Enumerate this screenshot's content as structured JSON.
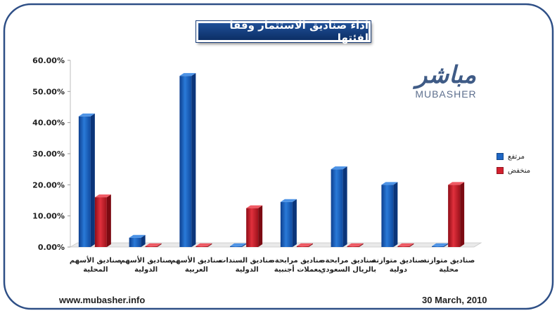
{
  "title": "اداء صناديق الاستثمار وفقاً لفئتها",
  "logo": {
    "arabic": "مباشر",
    "english": "MUBASHER"
  },
  "footer": {
    "url": "www.mubasher.info",
    "date": "30 March, 2010"
  },
  "colors": {
    "frame": "#2e4f86",
    "series_high": "#1e66c4",
    "series_low": "#d3202e"
  },
  "chart_data": {
    "type": "bar",
    "title": "اداء صناديق الاستثمار وفقاً لفئتها",
    "xlabel": "",
    "ylabel": "",
    "ylim": [
      0,
      60
    ],
    "yticks": [
      "0.00%",
      "10.00%",
      "20.00%",
      "30.00%",
      "40.00%",
      "50.00%",
      "60.00%"
    ],
    "legend_position": "right",
    "categories": [
      [
        "صناديق الأسهم",
        "المحلية"
      ],
      [
        "صناديق الأسهم",
        "الدولية"
      ],
      [
        "صناديق الأسهم",
        "العربية"
      ],
      [
        "صناديق السندات",
        "الدولية"
      ],
      [
        "صناديق مرابحة -",
        "بعملات أجنبية"
      ],
      [
        "صناديق مرابحة -",
        "بالريال السعودي"
      ],
      [
        "صناديق متوازنة",
        "دولية"
      ],
      [
        "صناديق متوازنة",
        "محلية"
      ]
    ],
    "series": [
      {
        "name": "مرتفع",
        "color": "#1e66c4",
        "values": [
          42,
          3,
          55,
          0,
          14.5,
          25,
          20,
          0
        ]
      },
      {
        "name": "منخفض",
        "color": "#d3202e",
        "values": [
          16,
          0,
          0,
          12.5,
          0,
          0,
          0,
          20
        ]
      }
    ]
  }
}
